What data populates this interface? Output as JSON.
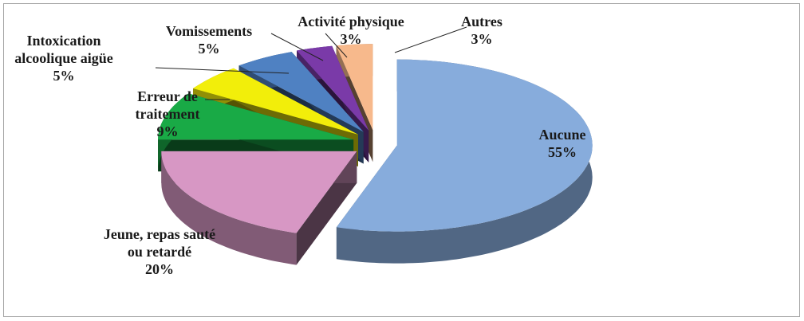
{
  "chart_data": {
    "type": "pie3d",
    "categories": [
      "Aucune",
      "Jeune, repas sauté\nou retardé",
      "Erreur de\ntraitement",
      "Intoxication\nalcoolique aigüe",
      "Vomissements",
      "Activité physique",
      "Autres"
    ],
    "values": [
      55,
      20,
      9,
      5,
      5,
      3,
      3
    ],
    "value_labels": [
      "55%",
      "20%",
      "9%",
      "5%",
      "5%",
      "3%",
      "3%"
    ],
    "colors": [
      "#87acdc",
      "#d797c4",
      "#19aa46",
      "#f2ee0a",
      "#4f81c2",
      "#7a3aa8",
      "#f7b98c"
    ]
  }
}
